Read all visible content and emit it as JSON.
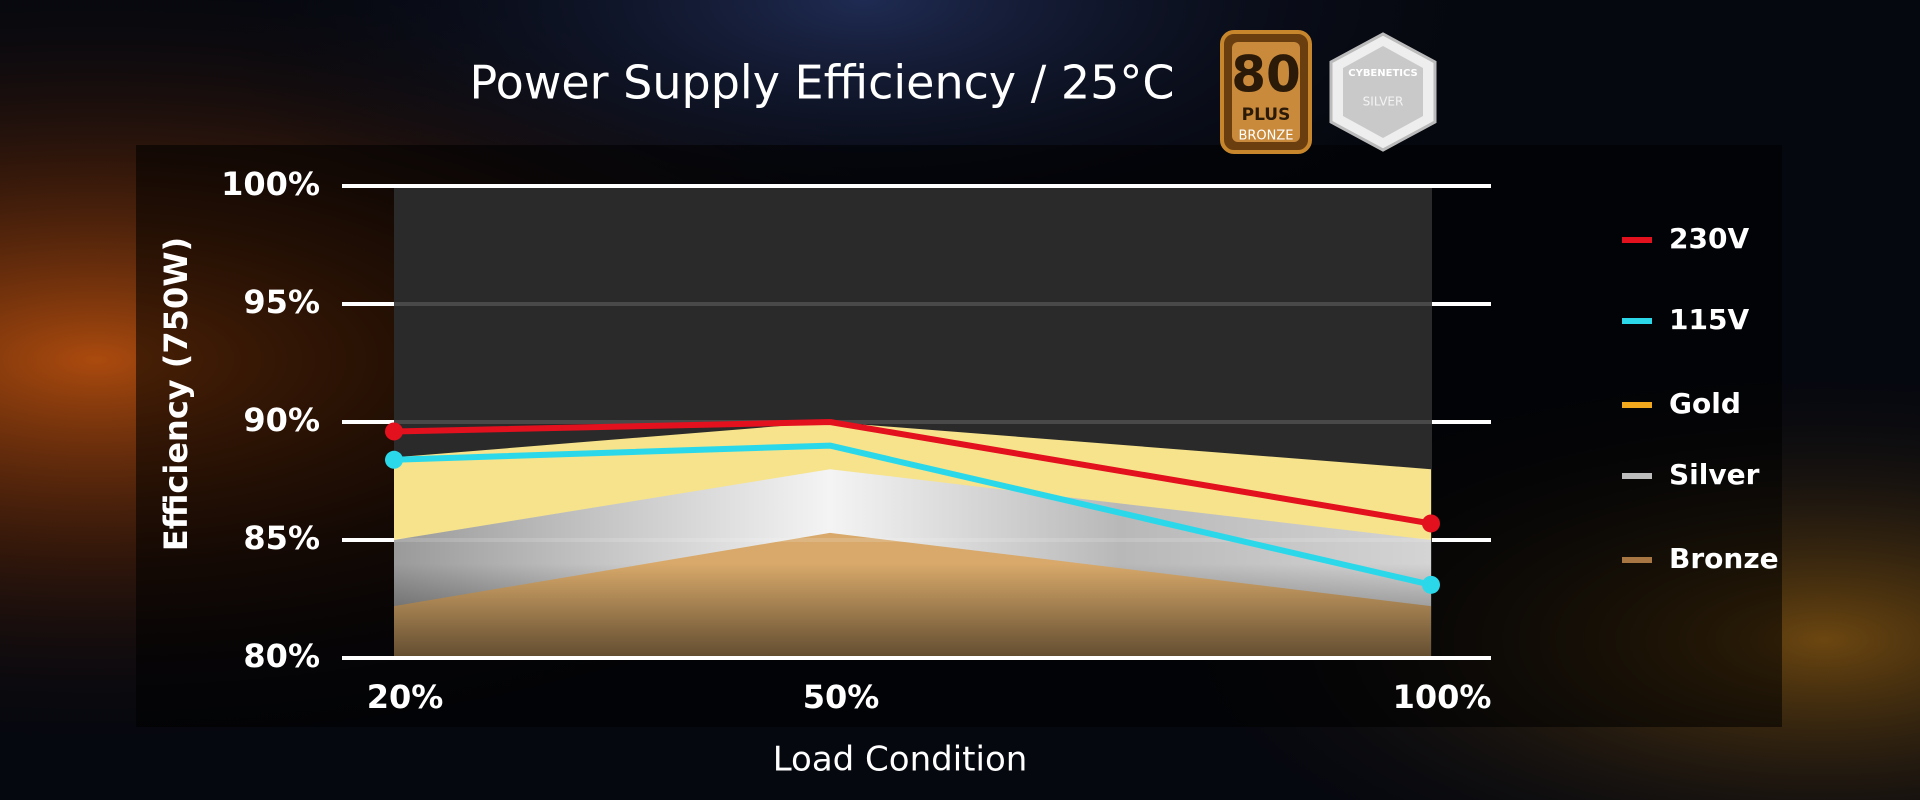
{
  "chart_data": {
    "type": "line",
    "title": "Power Supply Efficiency / 25°C",
    "ylabel": "Efficiency (750W)",
    "xlabel": "Load Condition",
    "categories": [
      "20%",
      "50%",
      "100%"
    ],
    "series": [
      {
        "name": "230V",
        "color": "#e3101e",
        "values": [
          89.6,
          90.0,
          85.7
        ]
      },
      {
        "name": "115V",
        "color": "#2ad8ea",
        "values": [
          88.4,
          89.0,
          83.1
        ]
      }
    ],
    "bands": [
      {
        "name": "Gold",
        "color": "#f2a81d",
        "fill": "#f6e38c",
        "values": [
          88.5,
          90.0,
          88.0
        ]
      },
      {
        "name": "Silver",
        "color": "#bdbdbd",
        "fill": "#c9c9c9",
        "values": [
          85.0,
          88.0,
          85.0
        ]
      },
      {
        "name": "Bronze",
        "color": "#a87642",
        "fill": "#d8a96a",
        "values": [
          82.2,
          85.3,
          82.2
        ]
      }
    ],
    "ylim": [
      80,
      100
    ],
    "yticks": [
      {
        "value": 80,
        "label": "80%"
      },
      {
        "value": 85,
        "label": "85%"
      },
      {
        "value": 90,
        "label": "90%"
      },
      {
        "value": 95,
        "label": "95%"
      },
      {
        "value": 100,
        "label": "100%"
      }
    ],
    "grid": true
  },
  "badges": [
    {
      "lines": [
        "80",
        "PLUS",
        "BRONZE"
      ]
    },
    {
      "lines": [
        "CYBENETICS",
        "SILVER"
      ]
    }
  ]
}
